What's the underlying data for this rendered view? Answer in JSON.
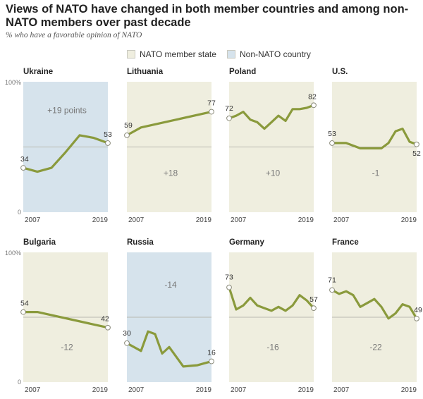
{
  "header": {
    "title": "Views of NATO have changed in both member countries and among non-NATO members over past decade",
    "subtitle": "% who have a favorable opinion of NATO"
  },
  "legend": {
    "member_label": "NATO member state",
    "nonmember_label": "Non-NATO country"
  },
  "colors": {
    "member_bg": "#efeedf",
    "nonmember_bg": "#d6e3ec",
    "line": "#8a9a3c",
    "midline": "#b8b8b0"
  },
  "axis": {
    "y_top_label": "100%",
    "y_bottom_label": "0",
    "x_start_label": "2007",
    "x_end_label": "2019"
  },
  "chart_data": [
    {
      "type": "line",
      "title": "Ukraine",
      "membership": "non-NATO",
      "x": [
        2007,
        2009,
        2011,
        2013,
        2015,
        2017,
        2019
      ],
      "values": [
        34,
        31,
        34,
        46,
        59,
        57,
        53
      ],
      "start_label": "34",
      "end_label": "53",
      "change_label": "+19 points",
      "ylim": [
        0,
        100
      ]
    },
    {
      "type": "line",
      "title": "Lithuania",
      "membership": "NATO",
      "x": [
        2007,
        2009,
        2019
      ],
      "values": [
        59,
        65,
        77
      ],
      "start_label": "59",
      "end_label": "77",
      "change_label": "+18",
      "ylim": [
        0,
        100
      ]
    },
    {
      "type": "line",
      "title": "Poland",
      "membership": "NATO",
      "x": [
        2007,
        2008,
        2009,
        2010,
        2011,
        2012,
        2013,
        2014,
        2015,
        2016,
        2017,
        2018,
        2019
      ],
      "values": [
        72,
        74,
        77,
        71,
        69,
        64,
        69,
        74,
        70,
        79,
        79,
        80,
        82
      ],
      "start_label": "72",
      "end_label": "82",
      "change_label": "+10",
      "ylim": [
        0,
        100
      ]
    },
    {
      "type": "line",
      "title": "U.S.",
      "membership": "NATO",
      "x": [
        2007,
        2008,
        2009,
        2010,
        2011,
        2012,
        2013,
        2014,
        2015,
        2016,
        2017,
        2018,
        2019
      ],
      "values": [
        53,
        53,
        53,
        51,
        49,
        49,
        49,
        49,
        53,
        62,
        64,
        54,
        52
      ],
      "start_label": "53",
      "end_label": "52",
      "change_label": "-1",
      "ylim": [
        0,
        100
      ]
    },
    {
      "type": "line",
      "title": "Bulgaria",
      "membership": "NATO",
      "x": [
        2007,
        2009,
        2019
      ],
      "values": [
        54,
        54,
        42
      ],
      "start_label": "54",
      "end_label": "42",
      "change_label": "-12",
      "ylim": [
        0,
        100
      ]
    },
    {
      "type": "line",
      "title": "Russia",
      "membership": "non-NATO",
      "x": [
        2007,
        2009,
        2010,
        2011,
        2012,
        2013,
        2015,
        2017,
        2019
      ],
      "values": [
        30,
        24,
        39,
        37,
        22,
        27,
        12,
        13,
        16
      ],
      "start_label": "30",
      "end_label": "16",
      "change_label": "-14",
      "ylim": [
        0,
        100
      ]
    },
    {
      "type": "line",
      "title": "Germany",
      "membership": "NATO",
      "x": [
        2007,
        2008,
        2009,
        2010,
        2011,
        2012,
        2013,
        2014,
        2015,
        2016,
        2017,
        2018,
        2019
      ],
      "values": [
        73,
        56,
        59,
        65,
        59,
        57,
        55,
        58,
        55,
        59,
        67,
        63,
        57
      ],
      "start_label": "73",
      "end_label": "57",
      "change_label": "-16",
      "ylim": [
        0,
        100
      ]
    },
    {
      "type": "line",
      "title": "France",
      "membership": "NATO",
      "x": [
        2007,
        2008,
        2009,
        2010,
        2011,
        2012,
        2013,
        2014,
        2015,
        2016,
        2017,
        2018,
        2019
      ],
      "values": [
        71,
        68,
        70,
        67,
        58,
        61,
        64,
        58,
        49,
        53,
        60,
        58,
        49
      ],
      "start_label": "71",
      "end_label": "49",
      "change_label": "-22",
      "ylim": [
        0,
        100
      ]
    }
  ]
}
